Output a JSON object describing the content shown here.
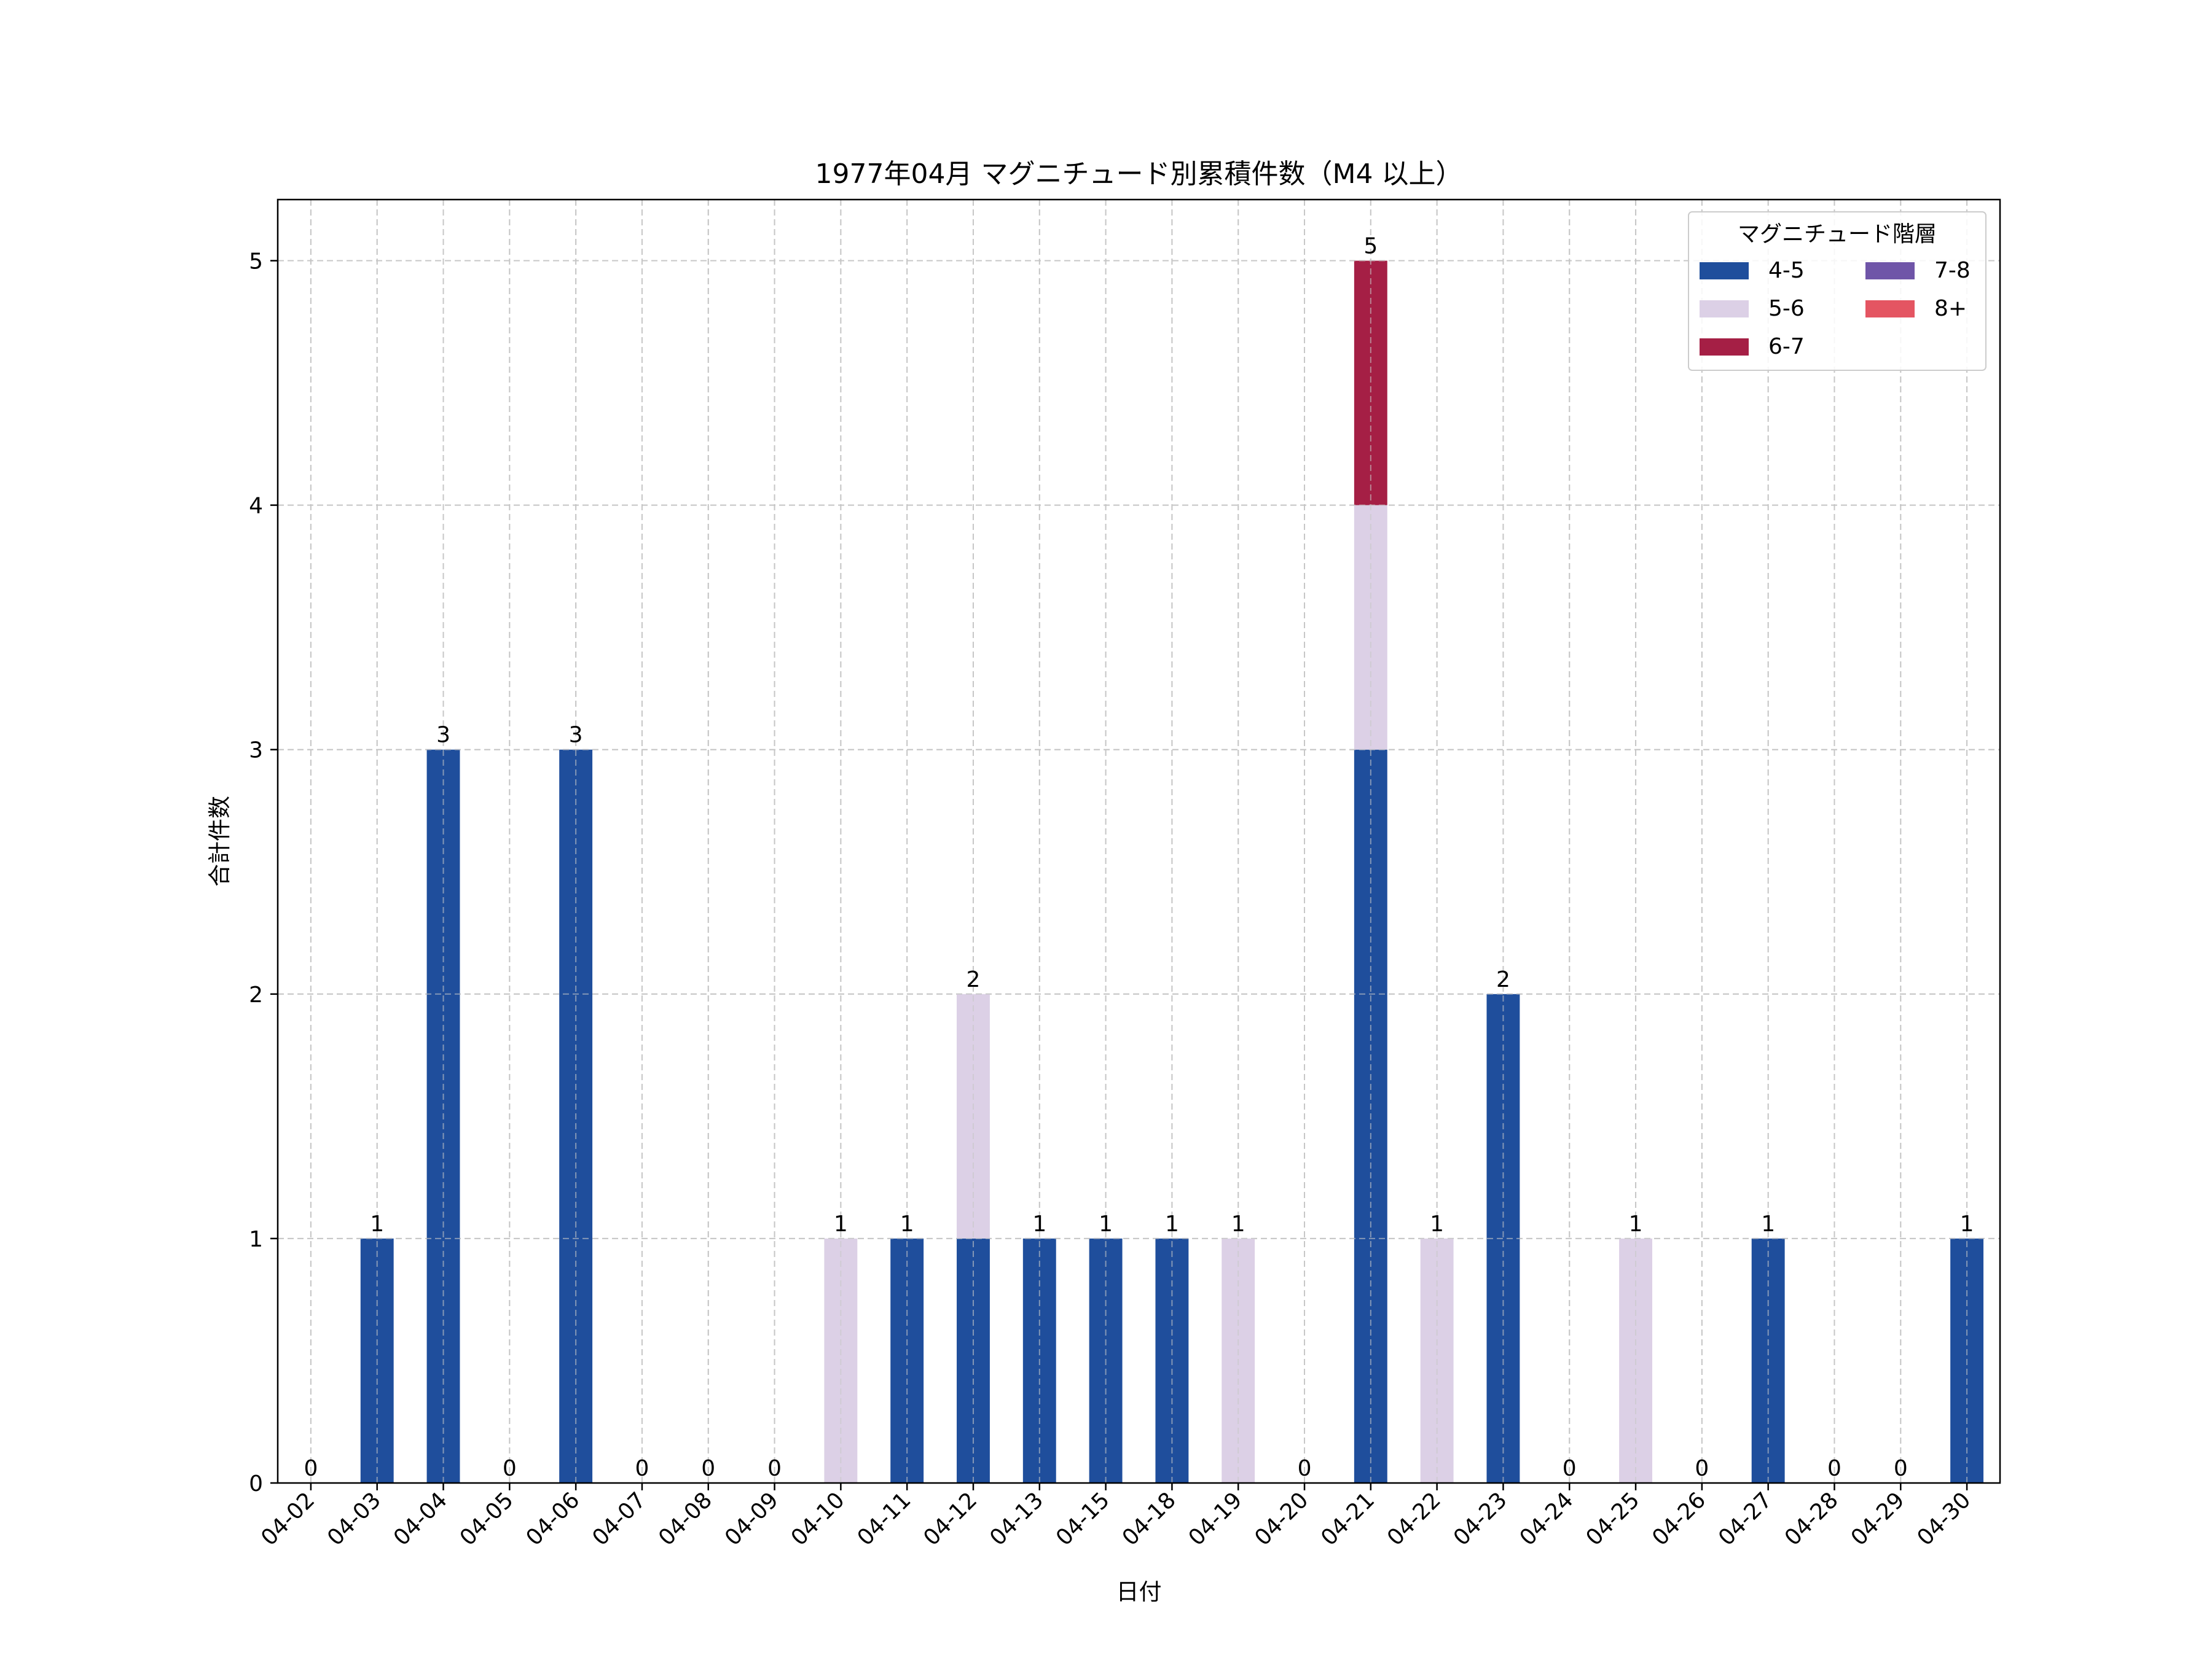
{
  "chart_data": {
    "type": "bar",
    "stacked": true,
    "title": "1977年04月 マグニチュード別累積件数（M4 以上）",
    "xlabel": "日付",
    "ylabel": "合計件数",
    "ylim": [
      0,
      5.25
    ],
    "yticks": [
      0,
      1,
      2,
      3,
      4,
      5
    ],
    "grid": true,
    "categories": [
      "04-02",
      "04-03",
      "04-04",
      "04-05",
      "04-06",
      "04-07",
      "04-08",
      "04-09",
      "04-10",
      "04-11",
      "04-12",
      "04-13",
      "04-15",
      "04-18",
      "04-19",
      "04-20",
      "04-21",
      "04-22",
      "04-23",
      "04-24",
      "04-25",
      "04-26",
      "04-27",
      "04-28",
      "04-29",
      "04-30"
    ],
    "series": [
      {
        "name": "4-5",
        "color": "#1f4e9c",
        "values": [
          0,
          1,
          3,
          0,
          3,
          0,
          0,
          0,
          0,
          1,
          1,
          1,
          1,
          1,
          0,
          0,
          3,
          0,
          2,
          0,
          0,
          0,
          1,
          0,
          0,
          1
        ]
      },
      {
        "name": "5-6",
        "color": "#dcd0e6",
        "values": [
          0,
          0,
          0,
          0,
          0,
          0,
          0,
          0,
          1,
          0,
          1,
          0,
          0,
          0,
          1,
          0,
          1,
          1,
          0,
          0,
          1,
          0,
          0,
          0,
          0,
          0
        ]
      },
      {
        "name": "6-7",
        "color": "#a51f45",
        "values": [
          0,
          0,
          0,
          0,
          0,
          0,
          0,
          0,
          0,
          0,
          0,
          0,
          0,
          0,
          0,
          0,
          1,
          0,
          0,
          0,
          0,
          0,
          0,
          0,
          0,
          0
        ]
      },
      {
        "name": "7-8",
        "color": "#6f55a8",
        "values": [
          0,
          0,
          0,
          0,
          0,
          0,
          0,
          0,
          0,
          0,
          0,
          0,
          0,
          0,
          0,
          0,
          0,
          0,
          0,
          0,
          0,
          0,
          0,
          0,
          0,
          0
        ]
      },
      {
        "name": "8+",
        "color": "#e45562",
        "values": [
          0,
          0,
          0,
          0,
          0,
          0,
          0,
          0,
          0,
          0,
          0,
          0,
          0,
          0,
          0,
          0,
          0,
          0,
          0,
          0,
          0,
          0,
          0,
          0,
          0,
          0
        ]
      }
    ],
    "totals": [
      0,
      1,
      3,
      0,
      3,
      0,
      0,
      0,
      1,
      1,
      2,
      1,
      1,
      1,
      1,
      0,
      5,
      1,
      2,
      0,
      1,
      0,
      1,
      0,
      0,
      1
    ],
    "legend": {
      "title": "マグニチュード階層",
      "placement": "top-right",
      "columns": 2
    }
  }
}
